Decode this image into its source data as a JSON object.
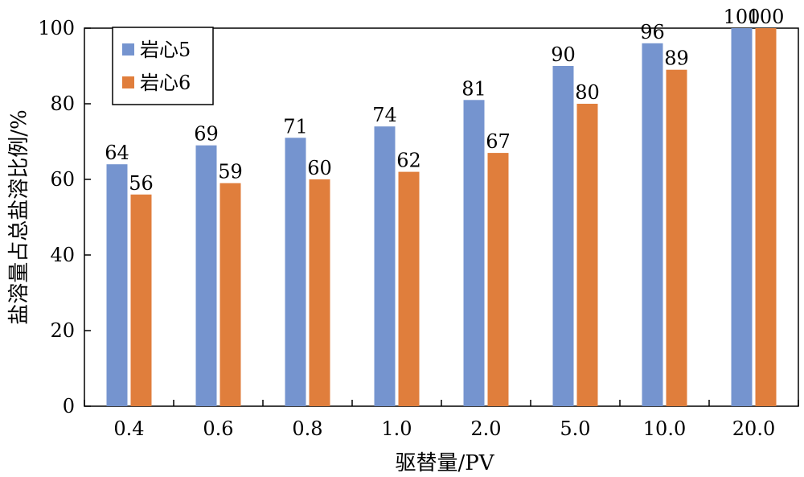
{
  "chart_data": {
    "type": "bar",
    "categories": [
      "0.4",
      "0.6",
      "0.8",
      "1.0",
      "2.0",
      "5.0",
      "10.0",
      "20.0"
    ],
    "series": [
      {
        "name": "岩心5",
        "color": "#7594cf",
        "values": [
          64,
          69,
          71,
          74,
          81,
          90,
          96,
          100
        ]
      },
      {
        "name": "岩心6",
        "color": "#e07e3c",
        "values": [
          56,
          59,
          60,
          62,
          67,
          80,
          89,
          100
        ]
      }
    ],
    "xlabel": "驱替量/PV",
    "ylabel": "盐溶量占总盐溶比例/%",
    "ylim": [
      0,
      100
    ],
    "yticks": [
      0,
      20,
      40,
      60,
      80,
      100
    ],
    "grid": false,
    "legend": "top-left"
  }
}
